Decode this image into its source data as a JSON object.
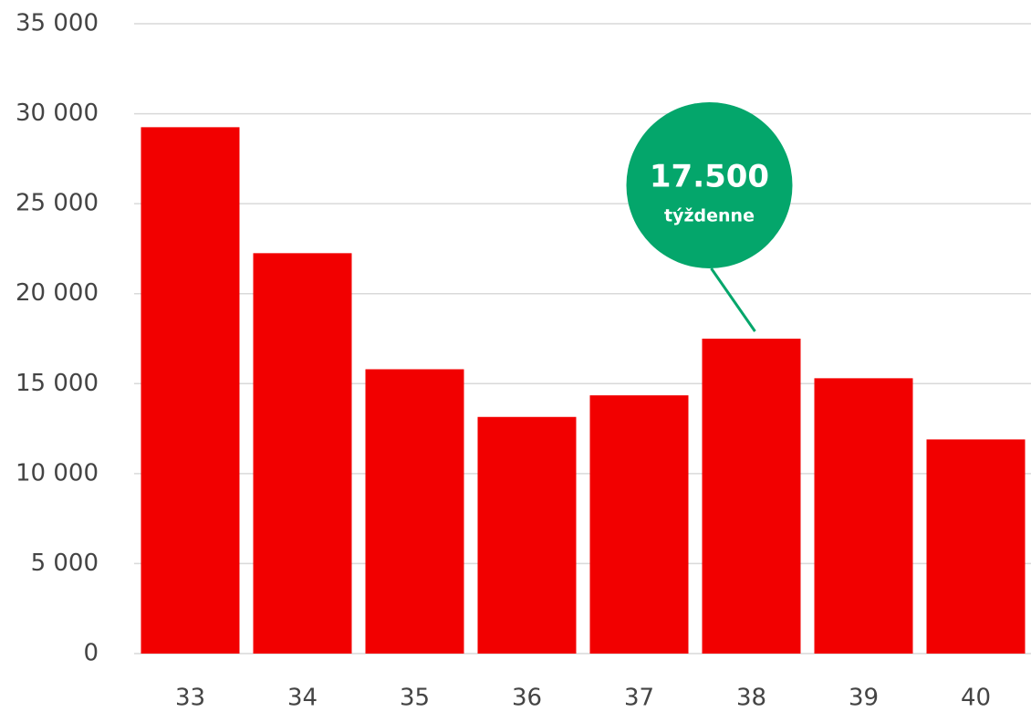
{
  "chart_data": {
    "type": "bar",
    "categories": [
      "33",
      "34",
      "35",
      "36",
      "37",
      "38",
      "39",
      "40"
    ],
    "values": [
      29250,
      22250,
      15800,
      13150,
      14350,
      17500,
      15300,
      11900
    ],
    "color": "#f20000",
    "ylim": [
      0,
      35000
    ],
    "yticks": [
      0,
      {
        "value": 5000,
        "label": "5 000"
      },
      {
        "value": 10000,
        "label": "10 000"
      },
      {
        "value": 15000,
        "label": "15 000"
      },
      {
        "value": 20000,
        "label": "20 000"
      },
      {
        "value": 25000,
        "label": "25 000"
      },
      {
        "value": 30000,
        "label": "30 000"
      },
      {
        "value": 35000,
        "label": "35 000"
      }
    ],
    "grid": true,
    "annotation": {
      "text": "17.500",
      "subtext": "týždenne",
      "category": "38",
      "color": "#04a66b"
    }
  }
}
